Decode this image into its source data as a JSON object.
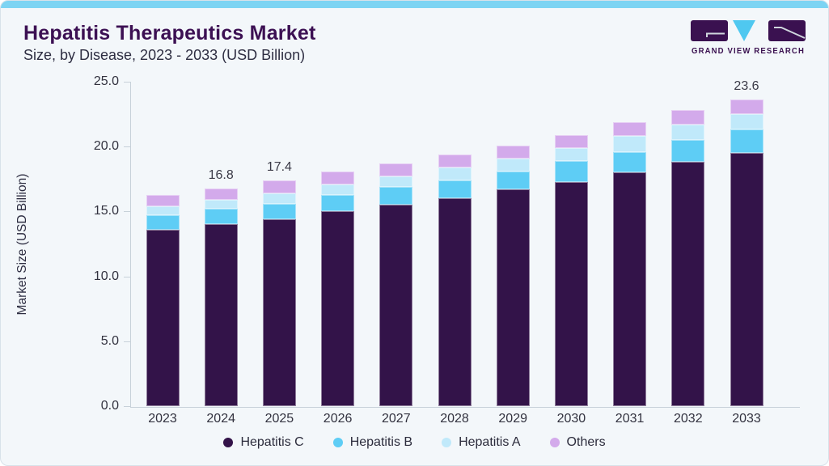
{
  "header": {
    "title": "Hepatitis Therapeutics Market",
    "subtitle": "Size, by Disease, 2023 - 2033 (USD Billion)"
  },
  "logo": {
    "text": "GRAND VIEW RESEARCH"
  },
  "colors": {
    "accent_strip": "#7dd4f3",
    "card_background": "#f3f7fa",
    "card_border": "#d8e2ea",
    "title_purple": "#3c1053",
    "body_text": "#2e2e42",
    "axis_line": "#c7d1d9",
    "logo_purple": "#3a1150",
    "logo_cyan": "#4fc8f0"
  },
  "chart_data": {
    "type": "bar",
    "stacked": true,
    "title": "Hepatitis Therapeutics Market Size, by Disease, 2023 - 2033 (USD Billion)",
    "categories": [
      "2023",
      "2024",
      "2025",
      "2026",
      "2027",
      "2028",
      "2029",
      "2030",
      "2031",
      "2032",
      "2033"
    ],
    "series": [
      {
        "name": "Hepatitis C",
        "color": "#331349",
        "values": [
          13.6,
          14.0,
          14.4,
          15.0,
          15.5,
          16.0,
          16.7,
          17.3,
          18.0,
          18.8,
          19.5
        ]
      },
      {
        "name": "Hepatitis B",
        "color": "#5ecdf5",
        "values": [
          1.1,
          1.2,
          1.2,
          1.3,
          1.4,
          1.4,
          1.4,
          1.6,
          1.6,
          1.7,
          1.8
        ]
      },
      {
        "name": "Hepatitis A",
        "color": "#c0e9fa",
        "values": [
          0.7,
          0.7,
          0.8,
          0.8,
          0.8,
          1.0,
          1.0,
          1.0,
          1.2,
          1.2,
          1.2
        ]
      },
      {
        "name": "Others",
        "color": "#d3aaeb",
        "values": [
          0.9,
          0.9,
          1.0,
          1.0,
          1.0,
          1.0,
          1.0,
          1.0,
          1.1,
          1.1,
          1.1
        ]
      }
    ],
    "totals": [
      16.3,
      16.8,
      17.4,
      18.1,
      18.7,
      19.4,
      20.1,
      20.9,
      21.9,
      22.8,
      23.6
    ],
    "visible_bar_labels": {
      "2024": "16.8",
      "2025": "17.4",
      "2033": "23.6"
    },
    "ylabel": "Market Size (USD Billion)",
    "yticks": [
      "0.0",
      "5.0",
      "10.0",
      "15.0",
      "20.0",
      "25.0"
    ],
    "ylim": [
      0,
      25
    ],
    "grid": false,
    "legend_position": "bottom"
  }
}
